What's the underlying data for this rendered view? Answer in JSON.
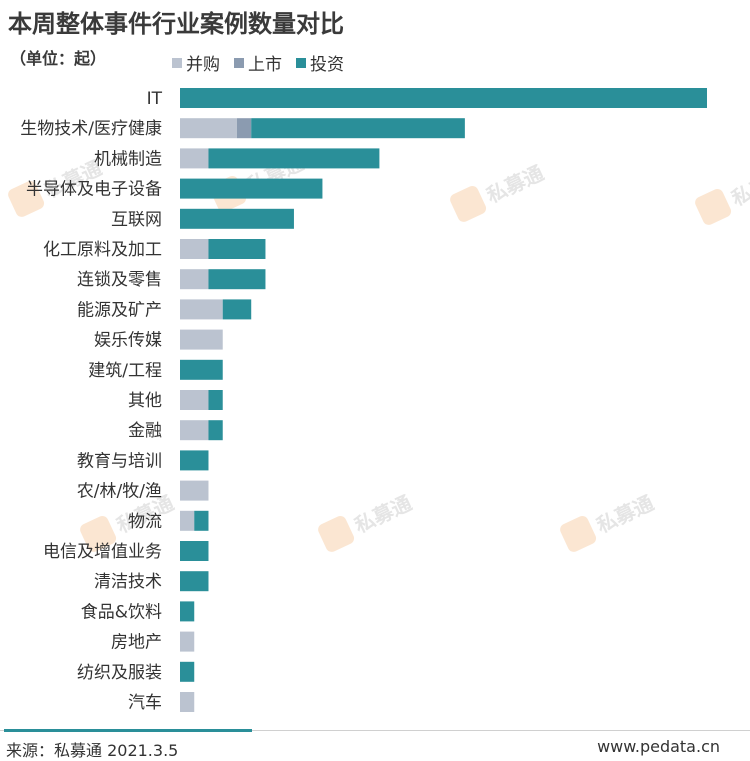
{
  "title": "本周整体事件行业案例数量对比",
  "unit": "（单位：起）",
  "source": "来源：私募通 2021.3.5",
  "website": "www.pedata.cn",
  "watermark_text": "私募通",
  "colors": {
    "并购": "#bbc3d0",
    "上市": "#8b9bb0",
    "投资": "#2a8f99"
  },
  "chart_data": {
    "type": "bar",
    "orientation": "horizontal",
    "stacked": true,
    "title": "本周整体事件行业案例数量对比",
    "unit": "（单位：起）",
    "legend_position": "top-left",
    "grid": false,
    "xlim": [
      0,
      37
    ],
    "categories": [
      "IT",
      "生物技术/医疗健康",
      "机械制造",
      "半导体及电子设备",
      "互联网",
      "化工原料及加工",
      "连锁及零售",
      "能源及矿产",
      "娱乐传媒",
      "建筑/工程",
      "其他",
      "金融",
      "教育与培训",
      "农/林/牧/渔",
      "物流",
      "电信及增值业务",
      "清洁技术",
      "食品&饮料",
      "房地产",
      "纺织及服装",
      "汽车"
    ],
    "series": [
      {
        "name": "并购",
        "values": [
          0,
          4,
          2,
          0,
          0,
          2,
          2,
          3,
          3,
          0,
          2,
          2,
          0,
          2,
          1,
          0,
          0,
          0,
          1,
          0,
          1
        ]
      },
      {
        "name": "上市",
        "values": [
          0,
          1,
          0,
          0,
          0,
          0,
          0,
          0,
          0,
          0,
          0,
          0,
          0,
          0,
          0,
          0,
          0,
          0,
          0,
          0,
          0
        ]
      },
      {
        "name": "投资",
        "values": [
          37,
          15,
          12,
          10,
          8,
          4,
          4,
          2,
          0,
          3,
          1,
          1,
          2,
          0,
          1,
          2,
          2,
          1,
          0,
          1,
          0
        ]
      }
    ]
  }
}
